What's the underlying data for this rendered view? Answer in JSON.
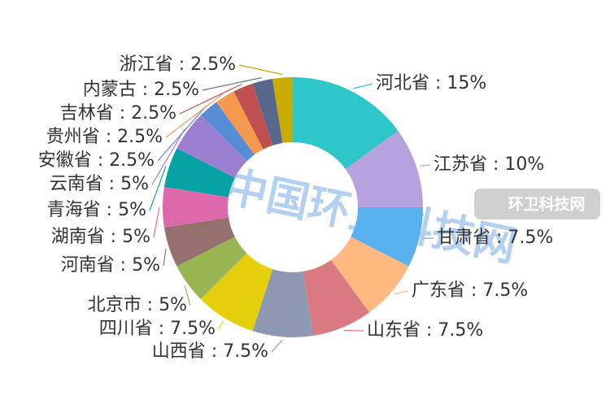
{
  "chart_data": {
    "type": "donut",
    "categories": [
      "河北省",
      "江苏省",
      "甘肃省",
      "广东省",
      "山东省",
      "山西省",
      "四川省",
      "北京市",
      "河南省",
      "湖南省",
      "青海省",
      "云南省",
      "安徽省",
      "贵州省",
      "吉林省",
      "内蒙古",
      "浙江省"
    ],
    "values": [
      15,
      10,
      7.5,
      7.5,
      7.5,
      7.5,
      7.5,
      5,
      5,
      5,
      5,
      5,
      2.5,
      2.5,
      2.5,
      2.5,
      2.5
    ],
    "value_labels": [
      "河北省 : 15%",
      "江苏省 : 10%",
      "甘肃省 : 7.5%",
      "广东省 : 7.5%",
      "山东省 : 7.5%",
      "山西省 : 7.5%",
      "四川省 : 7.5%",
      "北京市 : 5%",
      "河南省 : 5%",
      "湖南省 : 5%",
      "青海省 : 5%",
      "云南省 : 5%",
      "安徽省 : 2.5%",
      "贵州省 : 2.5%",
      "吉林省 : 2.5%",
      "内蒙古 : 2.5%",
      "浙江省 : 2.5%"
    ],
    "colors": [
      "#2ec7c9",
      "#b6a2de",
      "#5ab1ef",
      "#ffb980",
      "#d87a80",
      "#8d98b3",
      "#e5cf0d",
      "#97b552",
      "#95706d",
      "#dc69aa",
      "#07a2a4",
      "#9a7fd1",
      "#588dd5",
      "#f5994e",
      "#c05050",
      "#59678c",
      "#c9ab00"
    ]
  },
  "watermark": "中国环卫科技网",
  "badge": "环卫科技网"
}
